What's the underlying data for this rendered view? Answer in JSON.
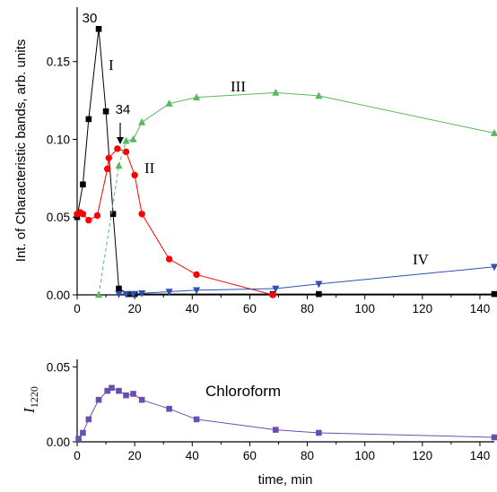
{
  "chart_data": [
    {
      "type": "line",
      "ylabel": "Int. of Characteristic bands, arb. units",
      "xlim": [
        0,
        145
      ],
      "ylim": [
        0,
        0.185
      ],
      "xticks": [
        0,
        20,
        40,
        60,
        80,
        100,
        120,
        140
      ],
      "yticks": [
        0.0,
        0.05,
        0.1,
        0.15
      ],
      "ytick_labels": [
        "0.00",
        "0.05",
        "0.10",
        "0.15"
      ],
      "series": [
        {
          "name": "I",
          "color": "#000000",
          "marker": "square",
          "points": [
            [
              0,
              0.05
            ],
            [
              2,
              0.071
            ],
            [
              4,
              0.113
            ],
            [
              7.5,
              0.171
            ],
            [
              10,
              0.118
            ],
            [
              12.5,
              0.052
            ],
            [
              14.5,
              0.004
            ],
            [
              18,
              0.0005
            ],
            [
              20,
              0.0005
            ],
            [
              68,
              0.0005
            ],
            [
              84,
              0.0005
            ],
            [
              145,
              0.0005
            ]
          ]
        },
        {
          "name": "II",
          "color": "#ff0000",
          "marker": "circle",
          "points": [
            [
              0,
              0.052
            ],
            [
              1,
              0.053
            ],
            [
              2,
              0.052
            ],
            [
              4,
              0.048
            ],
            [
              7,
              0.051
            ],
            [
              10.5,
              0.081
            ],
            [
              11,
              0.088
            ],
            [
              14,
              0.094
            ],
            [
              17,
              0.092
            ],
            [
              20,
              0.077
            ],
            [
              22.5,
              0.052
            ],
            [
              32,
              0.023
            ],
            [
              41.5,
              0.013
            ],
            [
              68,
              0.0
            ]
          ]
        },
        {
          "name": "III",
          "color": "#5cb85c",
          "marker": "triangle",
          "dashed_segments": [
            [
              0,
              2
            ]
          ],
          "points": [
            [
              7.5,
              0.0
            ],
            [
              14.5,
              0.083
            ],
            [
              17,
              0.099
            ],
            [
              19.5,
              0.1
            ],
            [
              22.5,
              0.111
            ],
            [
              32,
              0.123
            ],
            [
              41.5,
              0.127
            ],
            [
              69,
              0.13
            ],
            [
              84,
              0.128
            ],
            [
              145,
              0.104
            ]
          ]
        },
        {
          "name": "IV",
          "color": "#3050b0",
          "marker": "triangle-down",
          "points": [
            [
              14.5,
              0.0005
            ],
            [
              17,
              0.0005
            ],
            [
              19.5,
              0.0005
            ],
            [
              22.5,
              0.001
            ],
            [
              32,
              0.002
            ],
            [
              41.5,
              0.003
            ],
            [
              69,
              0.004
            ],
            [
              84,
              0.007
            ],
            [
              145,
              0.018
            ]
          ]
        }
      ],
      "annotations": [
        {
          "text": "30",
          "x": 7.5,
          "y": 0.171
        },
        {
          "text": "34",
          "x": 14.5,
          "y": 0.094
        },
        {
          "text": "I"
        },
        {
          "text": "II"
        },
        {
          "text": "III"
        },
        {
          "text": "IV"
        }
      ]
    },
    {
      "type": "line",
      "xlabel": "time, min",
      "ylabel_main": "I",
      "ylabel_sub": "1220",
      "xlim": [
        0,
        145
      ],
      "ylim": [
        0,
        0.055
      ],
      "xticks": [
        0,
        20,
        40,
        60,
        80,
        100,
        120,
        140
      ],
      "yticks": [
        0.0,
        0.05
      ],
      "ytick_labels": [
        "0.00",
        "0.05"
      ],
      "series": [
        {
          "name": "Chloroform",
          "color": "#6a4fb0",
          "marker": "square",
          "points": [
            [
              0.5,
              0.002
            ],
            [
              2,
              0.006
            ],
            [
              4,
              0.015
            ],
            [
              7.5,
              0.028
            ],
            [
              10.5,
              0.034
            ],
            [
              12,
              0.036
            ],
            [
              14.5,
              0.034
            ],
            [
              17,
              0.031
            ],
            [
              19.5,
              0.032
            ],
            [
              22.5,
              0.028
            ],
            [
              32,
              0.022
            ],
            [
              41.5,
              0.015
            ],
            [
              69,
              0.008
            ],
            [
              84,
              0.006
            ],
            [
              145,
              0.003
            ]
          ]
        }
      ]
    }
  ]
}
